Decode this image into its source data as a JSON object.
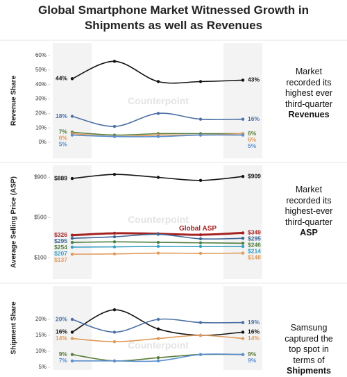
{
  "title": "Global Smartphone Market Witnessed Growth in Shipments as well as Revenues",
  "watermark": "Counterpoint",
  "chart_data": [
    {
      "type": "line",
      "y_label": "Revenue Share",
      "note": "Market recorded its highest ever third-quarter",
      "note_emphasis": "Revenues",
      "categories": [
        null,
        null,
        null,
        null,
        null
      ],
      "ylim": [
        0,
        60
      ],
      "yticks": [
        {
          "value": 0,
          "label": "0%"
        },
        {
          "value": 10,
          "label": "10%"
        },
        {
          "value": 20,
          "label": "20%"
        },
        {
          "value": 30,
          "label": "30%"
        },
        {
          "value": 40,
          "label": "40%"
        },
        {
          "value": 50,
          "label": "50%"
        },
        {
          "value": 60,
          "label": "60%"
        }
      ],
      "series": [
        {
          "color": "#111111",
          "values": [
            44,
            56,
            42,
            42,
            43
          ],
          "value_labels": [
            "44%",
            null,
            null,
            null,
            "43%"
          ]
        },
        {
          "color": "#4a6fa5",
          "values": [
            18,
            11,
            20,
            16,
            16
          ],
          "value_labels": [
            "18%",
            null,
            null,
            null,
            "16%"
          ]
        },
        {
          "color": "#5a7d3a",
          "values": [
            7,
            5,
            6,
            6,
            6
          ],
          "value_labels": [
            "7%",
            null,
            null,
            null,
            "6%"
          ]
        },
        {
          "color": "#e09a5a",
          "values": [
            6,
            4,
            5,
            5,
            6
          ],
          "value_labels": [
            "6%",
            null,
            null,
            null,
            "6%"
          ]
        },
        {
          "color": "#5b8fd0",
          "values": [
            5,
            4,
            4,
            5,
            5
          ],
          "value_labels": [
            "5%",
            null,
            null,
            null,
            "5%"
          ]
        }
      ]
    },
    {
      "type": "line",
      "y_label": "Average Selling Price (ASP)",
      "note": "Market recorded its highest-ever third-quarter",
      "note_emphasis": "ASP",
      "categories": [
        null,
        null,
        null,
        null,
        null
      ],
      "ylim": [
        0,
        1000
      ],
      "yticks": [
        {
          "value": 100,
          "label": "$100"
        },
        {
          "value": 500,
          "label": "$500"
        },
        {
          "value": 900,
          "label": "$900"
        }
      ],
      "series": [
        {
          "color": "#111111",
          "values": [
            889,
            930,
            900,
            870,
            909
          ],
          "value_labels": [
            "$889",
            null,
            null,
            null,
            "$909"
          ]
        },
        {
          "name": "Global ASP",
          "color": "#a52222",
          "width": 3,
          "values": [
            326,
            345,
            340,
            330,
            349
          ],
          "value_labels": [
            "$326",
            null,
            null,
            null,
            "$349"
          ]
        },
        {
          "color": "#3d6796",
          "values": [
            295,
            310,
            335,
            290,
            295
          ],
          "value_labels": [
            "$295",
            null,
            null,
            null,
            "$295"
          ]
        },
        {
          "color": "#4f7f3f",
          "values": [
            254,
            260,
            255,
            250,
            246
          ],
          "value_labels": [
            "$254",
            null,
            null,
            null,
            "$246"
          ]
        },
        {
          "color": "#38a0c4",
          "values": [
            207,
            210,
            215,
            214,
            214
          ],
          "value_labels": [
            "$207",
            null,
            null,
            null,
            "$214"
          ]
        },
        {
          "color": "#e09a5a",
          "values": [
            137,
            140,
            148,
            145,
            148
          ],
          "value_labels": [
            "$137",
            null,
            null,
            null,
            "$148"
          ]
        }
      ]
    },
    {
      "type": "line",
      "y_label": "Shipment Share",
      "note": "Samsung captured the top spot in terms of",
      "note_emphasis": "Shipments",
      "categories": [
        null,
        null,
        null,
        null,
        null
      ],
      "ylim": [
        0,
        25
      ],
      "yticks": [
        {
          "value": 5,
          "label": "5%"
        },
        {
          "value": 10,
          "label": "10%"
        },
        {
          "value": 15,
          "label": "15%"
        },
        {
          "value": 20,
          "label": "20%"
        }
      ],
      "series": [
        {
          "color": "#111111",
          "values": [
            16,
            23,
            17,
            15,
            16
          ],
          "value_labels": [
            "16%",
            null,
            null,
            null,
            "16%"
          ]
        },
        {
          "color": "#4a6fa5",
          "values": [
            20,
            16,
            20,
            19,
            19
          ],
          "value_labels": [
            "20%",
            null,
            null,
            null,
            "19%"
          ]
        },
        {
          "color": "#e09a5a",
          "values": [
            14,
            13,
            14,
            15,
            14
          ],
          "value_labels": [
            "14%",
            null,
            null,
            null,
            "14%"
          ]
        },
        {
          "color": "#5a7d3a",
          "values": [
            9,
            7,
            8,
            9,
            9
          ],
          "value_labels": [
            "9%",
            null,
            null,
            null,
            "9%"
          ]
        },
        {
          "color": "#5b8fd0",
          "values": [
            7,
            7,
            7,
            9,
            9
          ],
          "value_labels": [
            "7%",
            null,
            null,
            null,
            "9%"
          ]
        }
      ]
    }
  ]
}
